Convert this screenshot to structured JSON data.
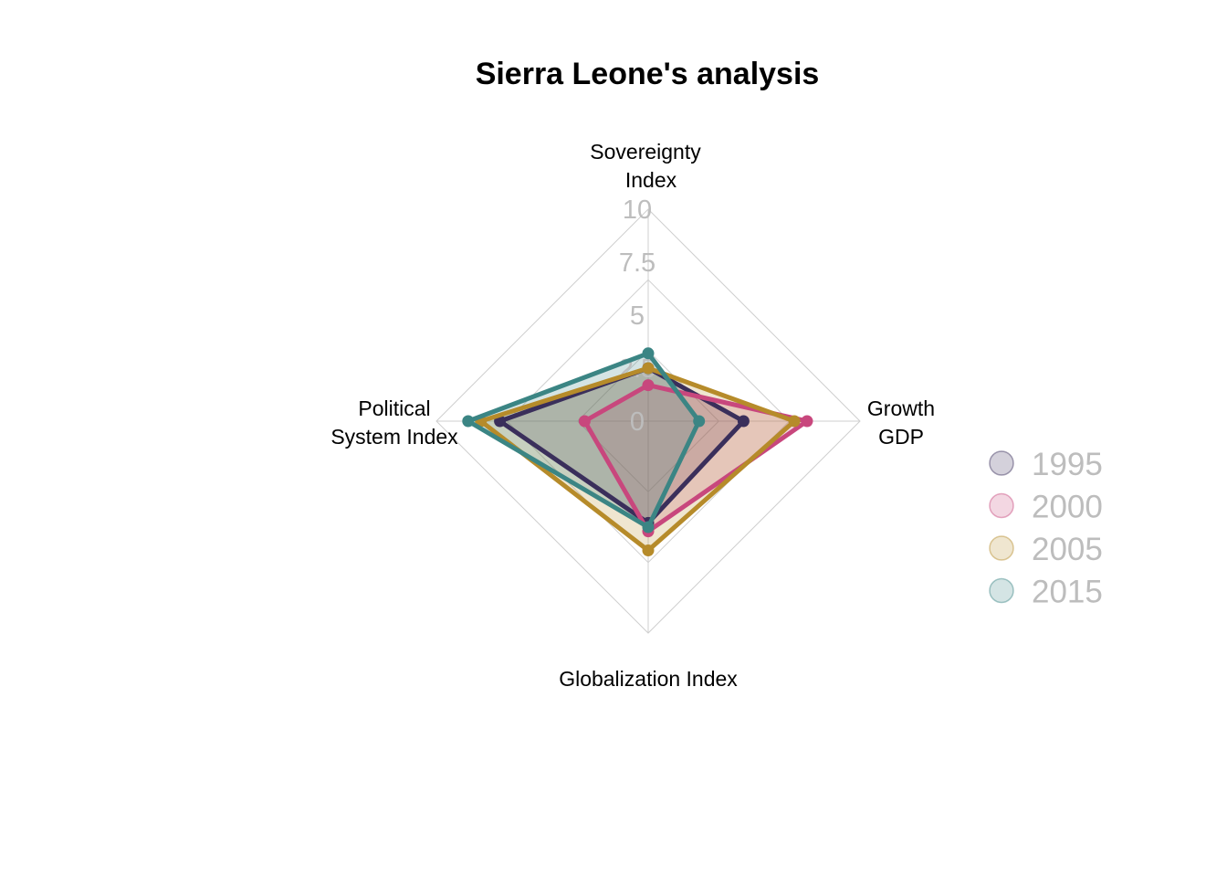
{
  "chart_data": {
    "type": "radar",
    "title": "Sierra Leone's analysis",
    "axes": [
      {
        "key": "sovereignty",
        "label_lines": [
          "Sovereignty",
          "Index"
        ]
      },
      {
        "key": "growth",
        "label_lines": [
          "Growth",
          "GDP"
        ]
      },
      {
        "key": "globalization",
        "label_lines": [
          "Globalization Index"
        ]
      },
      {
        "key": "political",
        "label_lines": [
          "Political",
          "System Index"
        ]
      }
    ],
    "range": [
      0,
      10
    ],
    "ticks": [
      "0",
      "2.5",
      "5",
      "7.5",
      "10"
    ],
    "series": [
      {
        "name": "1995",
        "color": "#3a2f5b",
        "values": [
          2.5,
          4.5,
          4.8,
          7.0
        ]
      },
      {
        "name": "2000",
        "color": "#c8477d",
        "values": [
          1.7,
          7.5,
          5.2,
          3.0
        ]
      },
      {
        "name": "2005",
        "color": "#b68b2a",
        "values": [
          2.5,
          6.9,
          6.1,
          7.9
        ]
      },
      {
        "name": "2015",
        "color": "#3b8584",
        "values": [
          3.2,
          2.4,
          5.0,
          8.5
        ]
      }
    ],
    "legend": {
      "position": "right"
    }
  }
}
